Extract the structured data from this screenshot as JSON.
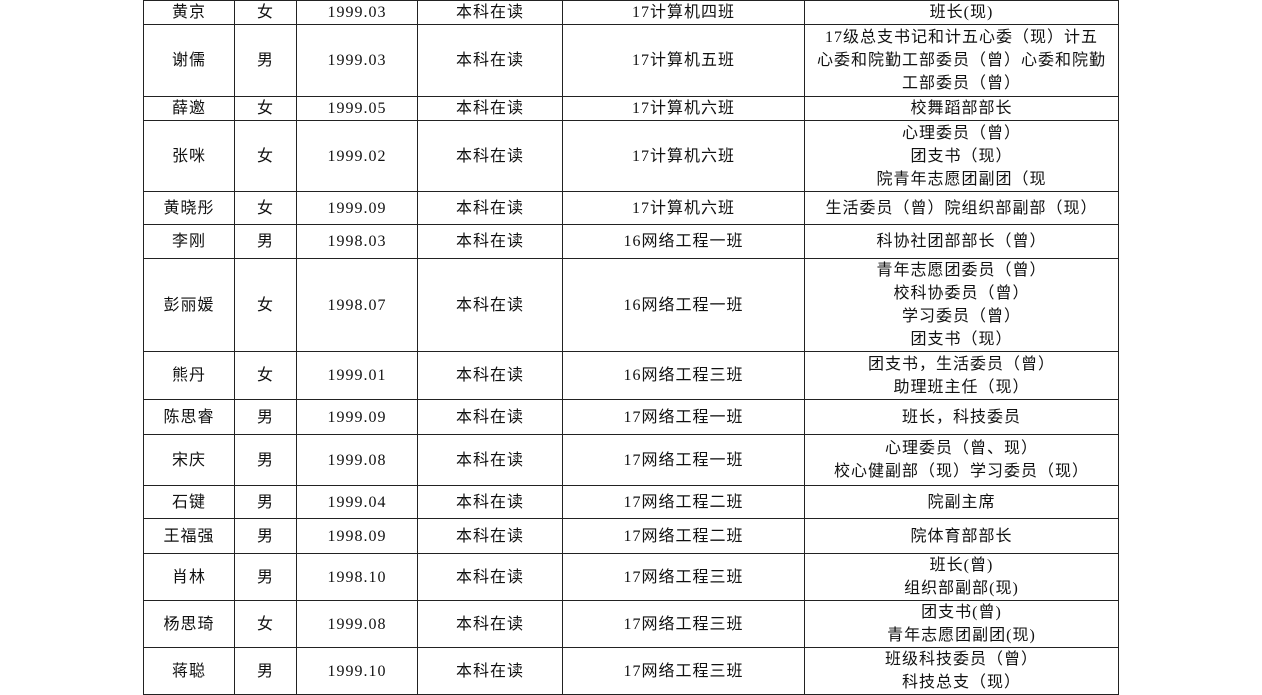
{
  "table": {
    "rows": [
      [
        "黄京",
        "女",
        "1999.03",
        "本科在读",
        "17计算机四班",
        [
          "班长(现)"
        ]
      ],
      [
        "谢儒",
        "男",
        "1999.03",
        "本科在读",
        "17计算机五班",
        [
          "17级总支书记和计五心委（现）计五",
          "心委和院勤工部委员（曾）心委和院勤",
          "工部委员（曾）"
        ]
      ],
      [
        "薛邀",
        "女",
        "1999.05",
        "本科在读",
        "17计算机六班",
        [
          "校舞蹈部部长"
        ]
      ],
      [
        "张咪",
        "女",
        "1999.02",
        "本科在读",
        "17计算机六班",
        [
          "心理委员（曾）",
          "团支书（现）",
          "院青年志愿团副团（现"
        ]
      ],
      [
        "黄晓彤",
        "女",
        "1999.09",
        "本科在读",
        "17计算机六班",
        [
          "生活委员（曾）院组织部副部（现）"
        ]
      ],
      [
        "李刚",
        "男",
        "1998.03",
        "本科在读",
        "16网络工程一班",
        [
          "科协社团部部长（曾）"
        ]
      ],
      [
        "彭丽媛",
        "女",
        "1998.07",
        "本科在读",
        "16网络工程一班",
        [
          "青年志愿团委员（曾）",
          "校科协委员（曾）",
          "学习委员（曾）",
          "团支书（现）"
        ]
      ],
      [
        "熊丹",
        "女",
        "1999.01",
        "本科在读",
        "16网络工程三班",
        [
          "团支书，生活委员（曾）",
          "助理班主任（现）"
        ]
      ],
      [
        "陈思睿",
        "男",
        "1999.09",
        "本科在读",
        "17网络工程一班",
        [
          "班长，科技委员"
        ]
      ],
      [
        "宋庆",
        "男",
        "1999.08",
        "本科在读",
        "17网络工程一班",
        [
          "心理委员（曾、现）",
          "校心健副部（现）学习委员（现）"
        ]
      ],
      [
        "石键",
        "男",
        "1999.04",
        "本科在读",
        "17网络工程二班",
        [
          "院副主席"
        ]
      ],
      [
        "王福强",
        "男",
        "1998.09",
        "本科在读",
        "17网络工程二班",
        [
          "院体育部部长"
        ]
      ],
      [
        "肖林",
        "男",
        "1998.10",
        "本科在读",
        "17网络工程三班",
        [
          "班长(曾)",
          "组织部副部(现)"
        ]
      ],
      [
        "杨思琦",
        "女",
        "1999.08",
        "本科在读",
        "17网络工程三班",
        [
          "团支书(曾)",
          "青年志愿团副团(现)"
        ]
      ],
      [
        "蒋聪",
        "男",
        "1999.10",
        "本科在读",
        "17网络工程三班",
        [
          "班级科技委员（曾）",
          "科技总支（现）"
        ]
      ]
    ]
  }
}
